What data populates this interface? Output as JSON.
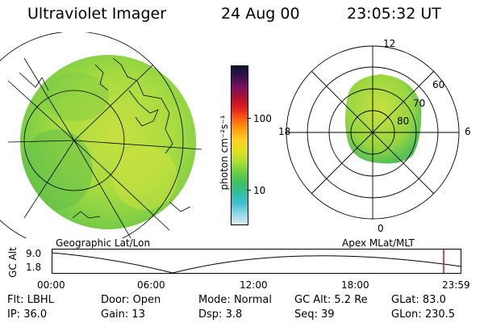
{
  "header": {
    "instrument": "Ultraviolet Imager",
    "date": "24 Aug 00",
    "time": "23:05:32 UT"
  },
  "colorbar": {
    "unit_label": "photon cm⁻²s⁻¹",
    "tick_labels": [
      "100",
      "10"
    ],
    "colors": [
      "#101030",
      "#3a1050",
      "#7a1060",
      "#b01030",
      "#e02020",
      "#ff6010",
      "#ffa010",
      "#ffd020",
      "#e0e020",
      "#b0e030",
      "#70d040",
      "#40c060",
      "#30c0a0",
      "#40c0d0",
      "#90d8e8",
      "#d8ecf0"
    ]
  },
  "geographic_panel": {
    "label": "Geographic Lat/Lon",
    "image_colors": {
      "base": "#8fd64a",
      "light": "#c8e040",
      "dark": "#5ab64a"
    }
  },
  "polar_panel": {
    "label": "Apex MLat/MLT",
    "mlt_labels": {
      "top": "12",
      "left": "18",
      "right": "6",
      "bottom": "0"
    },
    "lat_labels": [
      "60",
      "70",
      "80"
    ]
  },
  "timeline": {
    "ylabel": "GC Alt",
    "y_ticks": [
      "9.0",
      "1.8"
    ],
    "x_ticks": [
      "00:00",
      "06:00",
      "12:00",
      "18:00",
      "23:59"
    ],
    "marker_color": "#d01010"
  },
  "info": {
    "row1": [
      {
        "label": "Flt:",
        "value": "LBHL"
      },
      {
        "label": "Door:",
        "value": "Open"
      },
      {
        "label": "Mode:",
        "value": "Normal"
      },
      {
        "label": "GC Alt:",
        "value": "5.2 Re"
      },
      {
        "label": "GLat:",
        "value": "83.0"
      }
    ],
    "row2": [
      {
        "label": "IP:",
        "value": "36.0"
      },
      {
        "label": "Gain:",
        "value": "13"
      },
      {
        "label": "Dsp:",
        "value": "3.8"
      },
      {
        "label": "Seq:",
        "value": "39"
      },
      {
        "label": "GLon:",
        "value": "230.5"
      }
    ]
  }
}
